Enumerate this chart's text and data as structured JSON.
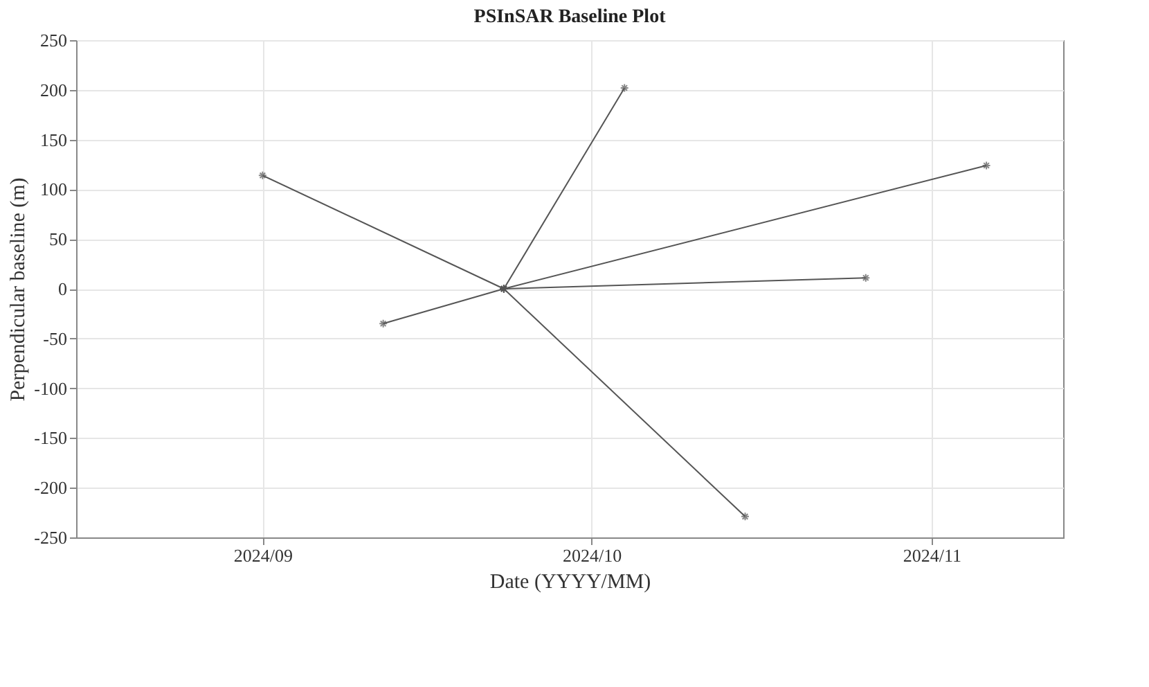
{
  "chart_data": {
    "type": "line",
    "title": "PSInSAR Baseline Plot",
    "xlabel": "Date (YYYY/MM)",
    "ylabel": "Perpendicular baseline (m)",
    "xlim": [
      "2024-08-15",
      "2024-11-13"
    ],
    "xticks": [
      {
        "value": "2024-09-01",
        "label": "2024/09"
      },
      {
        "value": "2024-10-01",
        "label": "2024/10"
      },
      {
        "value": "2024-11-01",
        "label": "2024/11"
      }
    ],
    "ylim": [
      -250,
      250
    ],
    "yticks": [
      -250,
      -200,
      -150,
      -100,
      -50,
      0,
      50,
      100,
      150,
      200,
      250
    ],
    "grid": true,
    "marker": "cross",
    "line_style": "solid",
    "series": [
      {
        "color": "#555555",
        "x": [
          "2024-09-23",
          "2024-09-01"
        ],
        "values": [
          0,
          114
        ]
      },
      {
        "color": "#555555",
        "x": [
          "2024-09-23",
          "2024-09-12"
        ],
        "values": [
          0,
          -35
        ]
      },
      {
        "color": "#555555",
        "x": [
          "2024-09-23",
          "2024-10-04"
        ],
        "values": [
          0,
          202
        ]
      },
      {
        "color": "#555555",
        "x": [
          "2024-09-23",
          "2024-10-15"
        ],
        "values": [
          0,
          -229
        ]
      },
      {
        "color": "#555555",
        "x": [
          "2024-09-23",
          "2024-10-26"
        ],
        "values": [
          0,
          11
        ]
      },
      {
        "color": "#555555",
        "x": [
          "2024-09-23",
          "2024-11-06"
        ],
        "values": [
          0,
          124
        ]
      }
    ]
  }
}
